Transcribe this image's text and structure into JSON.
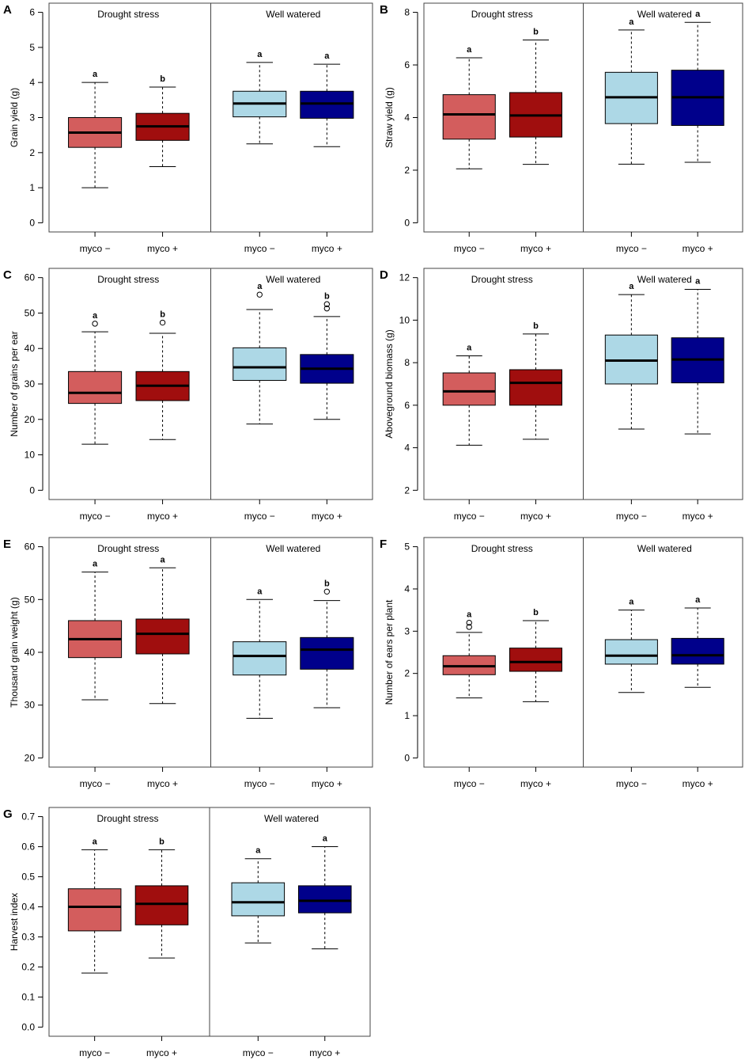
{
  "colors": {
    "drought_minus": "#d35d5d",
    "drought_plus": "#a00e0e",
    "well_minus": "#add8e6",
    "well_plus": "#00008b",
    "median": "#000000",
    "frame": "#444444"
  },
  "chart_data": [
    {
      "type": "boxplot",
      "panel": "A",
      "ylabel": "Grain yield (g)",
      "ylim": [
        0,
        6
      ],
      "yticks": [
        "0",
        "1",
        "2",
        "3",
        "4",
        "5",
        "6"
      ],
      "groups": [
        "Drought stress",
        "Well watered"
      ],
      "categories": [
        "myco −",
        "myco +",
        "myco −",
        "myco +"
      ],
      "boxes": [
        {
          "group": "Drought stress",
          "category": "myco −",
          "min": 1.0,
          "q1": 2.15,
          "median": 2.57,
          "q3": 3.0,
          "max": 4.0,
          "outliers": [],
          "sig": "a"
        },
        {
          "group": "Drought stress",
          "category": "myco +",
          "min": 1.6,
          "q1": 2.35,
          "median": 2.75,
          "q3": 3.12,
          "max": 3.87,
          "outliers": [],
          "sig": "b"
        },
        {
          "group": "Well watered",
          "category": "myco −",
          "min": 2.25,
          "q1": 3.02,
          "median": 3.4,
          "q3": 3.75,
          "max": 4.57,
          "outliers": [],
          "sig": "a"
        },
        {
          "group": "Well watered",
          "category": "myco +",
          "min": 2.17,
          "q1": 2.98,
          "median": 3.4,
          "q3": 3.75,
          "max": 4.52,
          "outliers": [],
          "sig": "a"
        }
      ]
    },
    {
      "type": "boxplot",
      "panel": "B",
      "ylabel": "Straw yield (g)",
      "ylim": [
        0,
        8
      ],
      "yticks": [
        "0",
        "2",
        "4",
        "6",
        "8"
      ],
      "groups": [
        "Drought stress",
        "Well watered"
      ],
      "categories": [
        "myco −",
        "myco +",
        "myco −",
        "myco +"
      ],
      "boxes": [
        {
          "group": "Drought stress",
          "category": "myco −",
          "min": 2.05,
          "q1": 3.18,
          "median": 4.12,
          "q3": 4.87,
          "max": 6.27,
          "outliers": [],
          "sig": "a"
        },
        {
          "group": "Drought stress",
          "category": "myco +",
          "min": 2.22,
          "q1": 3.26,
          "median": 4.08,
          "q3": 4.95,
          "max": 6.95,
          "outliers": [],
          "sig": "b"
        },
        {
          "group": "Well watered",
          "category": "myco −",
          "min": 2.23,
          "q1": 3.77,
          "median": 4.77,
          "q3": 5.72,
          "max": 7.33,
          "outliers": [],
          "sig": "a"
        },
        {
          "group": "Well watered",
          "category": "myco +",
          "min": 2.3,
          "q1": 3.7,
          "median": 4.77,
          "q3": 5.8,
          "max": 7.62,
          "outliers": [],
          "sig": "a"
        }
      ]
    },
    {
      "type": "boxplot",
      "panel": "C",
      "ylabel": "Number of grains per ear",
      "ylim": [
        0,
        60
      ],
      "yticks": [
        "0",
        "10",
        "20",
        "30",
        "40",
        "50",
        "60"
      ],
      "groups": [
        "Drought stress",
        "Well watered"
      ],
      "categories": [
        "myco −",
        "myco +",
        "myco −",
        "myco +"
      ],
      "boxes": [
        {
          "group": "Drought stress",
          "category": "myco −",
          "min": 13.0,
          "q1": 24.5,
          "median": 27.5,
          "q3": 33.5,
          "max": 44.7,
          "outliers": [
            47.0
          ],
          "sig": "a"
        },
        {
          "group": "Drought stress",
          "category": "myco +",
          "min": 14.3,
          "q1": 25.3,
          "median": 29.5,
          "q3": 33.5,
          "max": 44.3,
          "outliers": [
            47.3
          ],
          "sig": "b"
        },
        {
          "group": "Well watered",
          "category": "myco −",
          "min": 18.7,
          "q1": 31.0,
          "median": 34.7,
          "q3": 40.2,
          "max": 51.0,
          "outliers": [
            55.2
          ],
          "sig": "a"
        },
        {
          "group": "Well watered",
          "category": "myco +",
          "min": 20.0,
          "q1": 30.2,
          "median": 34.3,
          "q3": 38.3,
          "max": 49.0,
          "outliers": [
            51.3,
            52.5
          ],
          "sig": "b"
        }
      ]
    },
    {
      "type": "boxplot",
      "panel": "D",
      "ylabel": "Aboveground biomass (g)",
      "ylim": [
        2,
        12
      ],
      "yticks": [
        "2",
        "4",
        "6",
        "8",
        "10",
        "12"
      ],
      "groups": [
        "Drought stress",
        "Well watered"
      ],
      "categories": [
        "myco −",
        "myco +",
        "myco −",
        "myco +"
      ],
      "boxes": [
        {
          "group": "Drought stress",
          "category": "myco −",
          "min": 4.12,
          "q1": 6.0,
          "median": 6.65,
          "q3": 7.52,
          "max": 8.32,
          "outliers": [],
          "sig": "a"
        },
        {
          "group": "Drought stress",
          "category": "myco +",
          "min": 4.4,
          "q1": 6.0,
          "median": 7.05,
          "q3": 7.67,
          "max": 9.35,
          "outliers": [],
          "sig": "b"
        },
        {
          "group": "Well watered",
          "category": "myco −",
          "min": 4.88,
          "q1": 7.0,
          "median": 8.1,
          "q3": 9.3,
          "max": 11.2,
          "outliers": [],
          "sig": "a"
        },
        {
          "group": "Well watered",
          "category": "myco +",
          "min": 4.65,
          "q1": 7.05,
          "median": 8.15,
          "q3": 9.17,
          "max": 11.45,
          "outliers": [],
          "sig": "a"
        }
      ]
    },
    {
      "type": "boxplot",
      "panel": "E",
      "ylabel": "Thousand grain weight (g)",
      "ylim": [
        20,
        60
      ],
      "yticks": [
        "20",
        "30",
        "40",
        "50",
        "60"
      ],
      "groups": [
        "Drought stress",
        "Well watered"
      ],
      "categories": [
        "myco −",
        "myco +",
        "myco −",
        "myco +"
      ],
      "boxes": [
        {
          "group": "Drought stress",
          "category": "myco −",
          "min": 31.0,
          "q1": 39.0,
          "median": 42.5,
          "q3": 46.0,
          "max": 55.2,
          "outliers": [],
          "sig": "a"
        },
        {
          "group": "Drought stress",
          "category": "myco +",
          "min": 30.3,
          "q1": 39.7,
          "median": 43.5,
          "q3": 46.3,
          "max": 56.0,
          "outliers": [],
          "sig": "a"
        },
        {
          "group": "Well watered",
          "category": "myco −",
          "min": 27.5,
          "q1": 35.7,
          "median": 39.3,
          "q3": 42.0,
          "max": 50.0,
          "outliers": [],
          "sig": "a"
        },
        {
          "group": "Well watered",
          "category": "myco +",
          "min": 29.5,
          "q1": 36.8,
          "median": 40.5,
          "q3": 42.8,
          "max": 49.8,
          "outliers": [
            51.5
          ],
          "sig": "b"
        }
      ]
    },
    {
      "type": "boxplot",
      "panel": "F",
      "ylabel": "Number of ears per plant",
      "ylim": [
        0,
        5
      ],
      "yticks": [
        "0",
        "1",
        "2",
        "3",
        "4",
        "5"
      ],
      "groups": [
        "Drought stress",
        "Well watered"
      ],
      "categories": [
        "myco −",
        "myco +",
        "myco −",
        "myco +"
      ],
      "boxes": [
        {
          "group": "Drought stress",
          "category": "myco −",
          "min": 1.42,
          "q1": 1.97,
          "median": 2.17,
          "q3": 2.42,
          "max": 2.97,
          "outliers": [
            3.1,
            3.2
          ],
          "sig": "a"
        },
        {
          "group": "Drought stress",
          "category": "myco +",
          "min": 1.33,
          "q1": 2.05,
          "median": 2.27,
          "q3": 2.6,
          "max": 3.25,
          "outliers": [],
          "sig": "b"
        },
        {
          "group": "Well watered",
          "category": "myco −",
          "min": 1.55,
          "q1": 2.22,
          "median": 2.42,
          "q3": 2.8,
          "max": 3.5,
          "outliers": [],
          "sig": "a"
        },
        {
          "group": "Well watered",
          "category": "myco +",
          "min": 1.67,
          "q1": 2.22,
          "median": 2.43,
          "q3": 2.83,
          "max": 3.55,
          "outliers": [],
          "sig": "a"
        }
      ]
    },
    {
      "type": "boxplot",
      "panel": "G",
      "ylabel": "Harvest index",
      "ylim": [
        0,
        0.7
      ],
      "yticks": [
        "0.0",
        "0.1",
        "0.2",
        "0.3",
        "0.4",
        "0.5",
        "0.6",
        "0.7"
      ],
      "groups": [
        "Drought stress",
        "Well watered"
      ],
      "categories": [
        "myco −",
        "myco +",
        "myco −",
        "myco +"
      ],
      "boxes": [
        {
          "group": "Drought stress",
          "category": "myco −",
          "min": 0.18,
          "q1": 0.32,
          "median": 0.4,
          "q3": 0.46,
          "max": 0.59,
          "outliers": [],
          "sig": "a"
        },
        {
          "group": "Drought stress",
          "category": "myco +",
          "min": 0.23,
          "q1": 0.34,
          "median": 0.41,
          "q3": 0.47,
          "max": 0.59,
          "outliers": [],
          "sig": "b"
        },
        {
          "group": "Well watered",
          "category": "myco −",
          "min": 0.28,
          "q1": 0.37,
          "median": 0.415,
          "q3": 0.48,
          "max": 0.56,
          "outliers": [],
          "sig": "a"
        },
        {
          "group": "Well watered",
          "category": "myco +",
          "min": 0.26,
          "q1": 0.38,
          "median": 0.42,
          "q3": 0.47,
          "max": 0.6,
          "outliers": [],
          "sig": "a"
        }
      ]
    }
  ]
}
